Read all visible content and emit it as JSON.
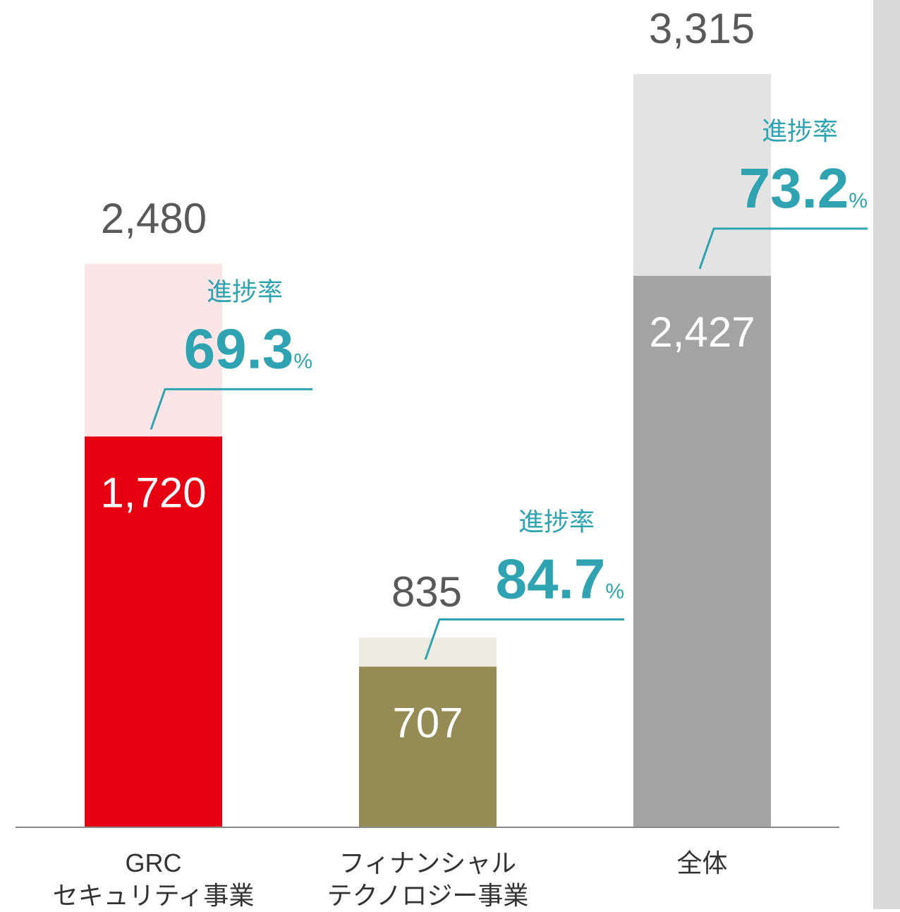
{
  "chart_data": {
    "type": "bar",
    "categories": [
      "GRC\nセキュリティ事業",
      "フィナンシャル\nテクノロジー事業",
      "全体"
    ],
    "series": [
      {
        "values": [
          2480,
          835,
          3315
        ],
        "value_labels": [
          "2,480",
          "835",
          "3,315"
        ],
        "colors": [
          "#fbe5e6",
          "#eeebe1",
          "#e3e3e3"
        ]
      },
      {
        "values": [
          1720,
          707,
          2427
        ],
        "value_labels": [
          "1,720",
          "707",
          "2,427"
        ],
        "colors": [
          "#e60012",
          "#958b54",
          "#a3a3a3"
        ]
      }
    ],
    "rate_title": "進捗率",
    "rates": [
      69.3,
      84.7,
      73.2
    ],
    "rate_unit": "%",
    "rate_color": "#2fa3b2",
    "ylim": [
      0,
      3315
    ]
  }
}
